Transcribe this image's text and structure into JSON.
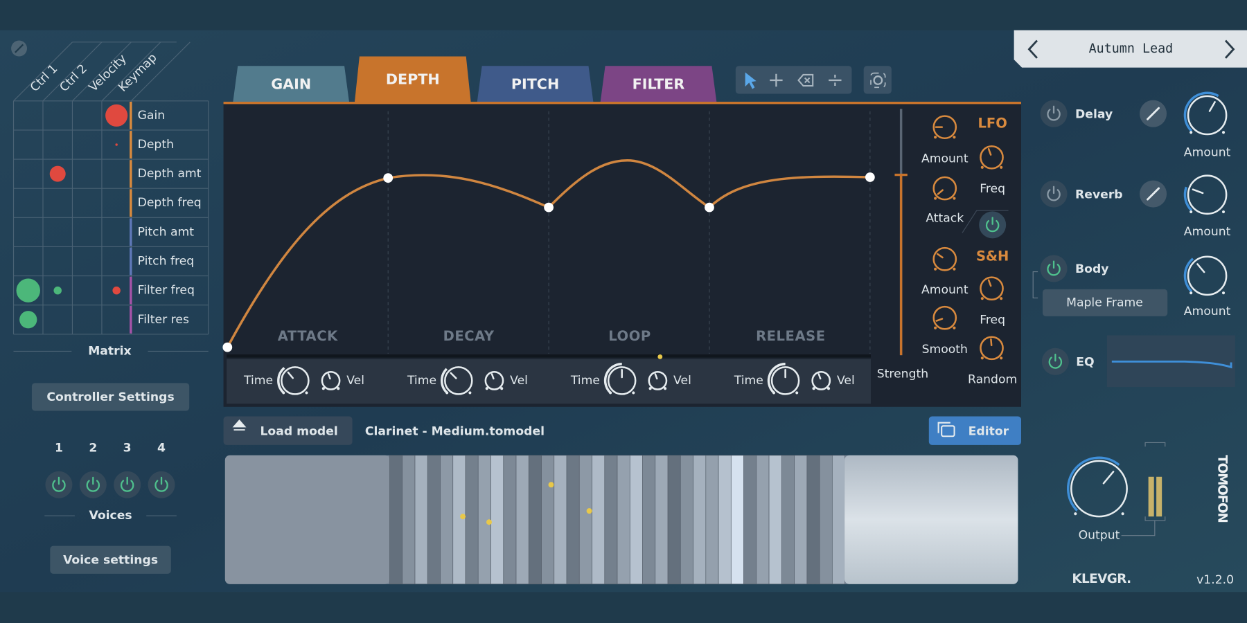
{
  "matrix": {
    "columns": [
      "Ctrl 1",
      "Ctrl 2",
      "Velocity",
      "Keymap"
    ],
    "rows": [
      "Gain",
      "Depth",
      "Depth amt",
      "Depth freq",
      "Pitch amt",
      "Pitch freq",
      "Filter freq",
      "Filter res"
    ],
    "title": "Matrix"
  },
  "controller_settings": "Controller Settings",
  "voices": {
    "numbers": [
      "1",
      "2",
      "3",
      "4"
    ],
    "title": "Voices",
    "settings": "Voice settings"
  },
  "tabs": [
    "GAIN",
    "DEPTH",
    "PITCH",
    "FILTER"
  ],
  "envelope": {
    "stages": [
      {
        "name": "ATTACK",
        "time": "Time",
        "vel": "Vel"
      },
      {
        "name": "DECAY",
        "time": "Time",
        "vel": "Vel"
      },
      {
        "name": "LOOP",
        "time": "Time",
        "vel": "Vel"
      },
      {
        "name": "RELEASE",
        "time": "Time",
        "vel": "Vel"
      }
    ],
    "strength": "Strength"
  },
  "modulators": {
    "lfo": {
      "title": "LFO",
      "amount": "Amount",
      "freq": "Freq",
      "attack": "Attack"
    },
    "sh": {
      "title": "S&H",
      "amount": "Amount",
      "freq": "Freq",
      "smooth": "Smooth",
      "random": "Random"
    }
  },
  "model": {
    "load": "Load model",
    "file": "Clarinet - Medium.tomodel",
    "editor": "Editor"
  },
  "preset": "Autumn Lead",
  "effects": [
    {
      "name": "Delay",
      "knob": "Amount"
    },
    {
      "name": "Reverb",
      "knob": "Amount"
    },
    {
      "name": "Body",
      "knob": "Amount",
      "option": "Maple Frame"
    },
    {
      "name": "EQ"
    }
  ],
  "output": "Output",
  "brand": "TOMOFON",
  "maker": "KLEVGR.",
  "version": "v1.2.0"
}
